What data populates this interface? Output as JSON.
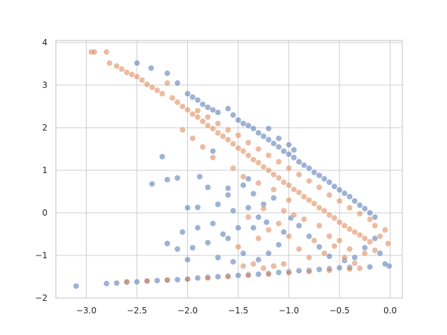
{
  "chart_data": {
    "type": "scatter",
    "title": "",
    "xlabel": "",
    "ylabel": "",
    "xlim": [
      -3.3,
      0.12
    ],
    "ylim": [
      -2.0,
      4.05
    ],
    "xticks": [
      -3.0,
      -2.5,
      -2.0,
      -1.5,
      -1.0,
      -0.5,
      0.0
    ],
    "xtick_labels": [
      "−3.0",
      "−2.5",
      "−2.0",
      "−1.5",
      "−1.0",
      "−0.5",
      "0.0"
    ],
    "yticks": [
      -2,
      -1,
      0,
      1,
      2,
      3,
      4
    ],
    "ytick_labels": [
      "−2",
      "−1",
      "0",
      "1",
      "2",
      "3",
      "4"
    ],
    "grid": true,
    "legend": "none",
    "series": [
      {
        "color": "#4c72b0",
        "point_alpha": 0.55,
        "points": [
          [
            -3.1,
            -1.72
          ],
          [
            -2.8,
            -1.66
          ],
          [
            -2.7,
            -1.65
          ],
          [
            -2.6,
            -1.63
          ],
          [
            -2.5,
            -1.62
          ],
          [
            -2.4,
            -1.6
          ],
          [
            -2.3,
            -1.59
          ],
          [
            -2.2,
            -1.58
          ],
          [
            -2.1,
            -1.57
          ],
          [
            -2.0,
            -1.55
          ],
          [
            -1.9,
            -1.53
          ],
          [
            -1.8,
            -1.51
          ],
          [
            -1.7,
            -1.5
          ],
          [
            -1.6,
            -1.48
          ],
          [
            -1.5,
            -1.47
          ],
          [
            -1.4,
            -1.45
          ],
          [
            -1.3,
            -1.44
          ],
          [
            -1.2,
            -1.42
          ],
          [
            -1.1,
            -1.4
          ],
          [
            -1.0,
            -1.38
          ],
          [
            -0.9,
            -1.36
          ],
          [
            -0.8,
            -1.35
          ],
          [
            -0.7,
            -1.33
          ],
          [
            -0.6,
            -1.31
          ],
          [
            -0.5,
            -1.29
          ],
          [
            -0.4,
            -1.28
          ],
          [
            -0.2,
            -1.27
          ],
          [
            -0.01,
            -1.25
          ],
          [
            -2.5,
            3.52
          ],
          [
            -2.36,
            3.4
          ],
          [
            -2.2,
            3.28
          ],
          [
            -2.1,
            3.05
          ],
          [
            -2.0,
            2.8
          ],
          [
            -1.95,
            2.72
          ],
          [
            -1.9,
            2.65
          ],
          [
            -1.85,
            2.55
          ],
          [
            -1.8,
            2.48
          ],
          [
            -1.75,
            2.42
          ],
          [
            -1.7,
            2.36
          ],
          [
            -1.6,
            2.45
          ],
          [
            -1.55,
            2.3
          ],
          [
            -1.5,
            2.18
          ],
          [
            -1.45,
            2.1
          ],
          [
            -1.4,
            2.05
          ],
          [
            -1.35,
            1.98
          ],
          [
            -1.3,
            1.88
          ],
          [
            -1.25,
            1.8
          ],
          [
            -1.2,
            1.72
          ],
          [
            -1.15,
            1.63
          ],
          [
            -1.1,
            1.55
          ],
          [
            -1.05,
            1.45
          ],
          [
            -1.0,
            1.38
          ],
          [
            -0.95,
            1.3
          ],
          [
            -0.9,
            1.2
          ],
          [
            -0.85,
            1.12
          ],
          [
            -0.8,
            1.05
          ],
          [
            -0.75,
            0.95
          ],
          [
            -0.7,
            0.88
          ],
          [
            -0.65,
            0.8
          ],
          [
            -0.6,
            0.72
          ],
          [
            -0.55,
            0.62
          ],
          [
            -0.5,
            0.54
          ],
          [
            -0.45,
            0.46
          ],
          [
            -0.4,
            0.38
          ],
          [
            -0.35,
            0.28
          ],
          [
            -0.3,
            0.18
          ],
          [
            -0.25,
            0.1
          ],
          [
            -0.2,
            0.0
          ],
          [
            -0.15,
            -0.1
          ],
          [
            -1.2,
            1.98
          ],
          [
            -1.1,
            1.75
          ],
          [
            -1.0,
            1.6
          ],
          [
            -0.95,
            1.48
          ],
          [
            -2.35,
            0.68
          ],
          [
            -2.2,
            0.78
          ],
          [
            -2.1,
            0.82
          ],
          [
            -2.0,
            0.12
          ],
          [
            -1.9,
            0.13
          ],
          [
            -2.25,
            1.32
          ],
          [
            -1.88,
            0.85
          ],
          [
            -1.75,
            1.45
          ],
          [
            -1.6,
            0.58
          ],
          [
            -1.8,
            0.6
          ],
          [
            -1.7,
            0.2
          ],
          [
            -1.55,
            0.05
          ],
          [
            -1.4,
            0.12
          ],
          [
            -1.35,
            0.45
          ],
          [
            -1.3,
            -0.1
          ],
          [
            -1.5,
            -0.35
          ],
          [
            -1.65,
            -0.5
          ],
          [
            -1.75,
            -0.25
          ],
          [
            -1.9,
            -0.35
          ],
          [
            -2.05,
            -0.45
          ],
          [
            -2.2,
            -0.72
          ],
          [
            -2.1,
            -0.85
          ],
          [
            -1.95,
            -0.82
          ],
          [
            -1.8,
            -0.7
          ],
          [
            -1.6,
            -0.6
          ],
          [
            -1.45,
            -0.95
          ],
          [
            -1.55,
            -1.15
          ],
          [
            -1.7,
            -1.05
          ],
          [
            -2.0,
            -1.1
          ],
          [
            -1.3,
            -1.1
          ],
          [
            -1.2,
            -0.95
          ],
          [
            -1.1,
            -0.75
          ],
          [
            -1.05,
            -0.45
          ],
          [
            -0.98,
            -0.12
          ],
          [
            -0.9,
            -0.3
          ],
          [
            -0.8,
            -0.55
          ],
          [
            -0.7,
            -0.8
          ],
          [
            -0.6,
            -1.02
          ],
          [
            -0.45,
            -1.12
          ],
          [
            -0.35,
            -1.05
          ],
          [
            -0.25,
            -0.82
          ],
          [
            -0.15,
            -0.6
          ],
          [
            -0.1,
            -0.95
          ],
          [
            -0.05,
            -1.2
          ],
          [
            -1.25,
            0.2
          ],
          [
            -1.15,
            0.35
          ],
          [
            -1.4,
            0.8
          ],
          [
            -1.45,
            0.65
          ],
          [
            -1.6,
            0.42
          ],
          [
            -1.35,
            -0.35
          ],
          [
            -1.22,
            -0.22
          ]
        ]
      },
      {
        "color": "#dd8452",
        "point_alpha": 0.55,
        "points": [
          [
            -2.95,
            3.78
          ],
          [
            -2.92,
            3.78
          ],
          [
            -2.8,
            3.78
          ],
          [
            -2.77,
            3.52
          ],
          [
            -2.7,
            3.45
          ],
          [
            -2.65,
            3.38
          ],
          [
            -2.6,
            3.3
          ],
          [
            -2.55,
            3.25
          ],
          [
            -2.5,
            3.2
          ],
          [
            -2.45,
            3.12
          ],
          [
            -2.4,
            3.02
          ],
          [
            -2.35,
            2.95
          ],
          [
            -2.3,
            2.88
          ],
          [
            -2.2,
            3.05
          ],
          [
            -2.25,
            2.8
          ],
          [
            -2.15,
            2.7
          ],
          [
            -2.1,
            2.6
          ],
          [
            -2.05,
            2.5
          ],
          [
            -2.0,
            2.42
          ],
          [
            -1.95,
            2.32
          ],
          [
            -1.9,
            2.25
          ],
          [
            -1.85,
            2.15
          ],
          [
            -1.8,
            2.05
          ],
          [
            -1.75,
            1.98
          ],
          [
            -1.7,
            1.88
          ],
          [
            -1.65,
            1.8
          ],
          [
            -1.6,
            1.72
          ],
          [
            -1.55,
            1.62
          ],
          [
            -1.5,
            1.52
          ],
          [
            -1.45,
            1.45
          ],
          [
            -1.4,
            1.35
          ],
          [
            -1.35,
            1.25
          ],
          [
            -1.3,
            1.18
          ],
          [
            -1.25,
            1.08
          ],
          [
            -1.2,
            1.0
          ],
          [
            -1.15,
            0.9
          ],
          [
            -1.1,
            0.82
          ],
          [
            -1.05,
            0.72
          ],
          [
            -1.0,
            0.65
          ],
          [
            -0.95,
            0.55
          ],
          [
            -0.9,
            0.48
          ],
          [
            -0.85,
            0.38
          ],
          [
            -0.8,
            0.3
          ],
          [
            -0.75,
            0.22
          ],
          [
            -0.7,
            0.12
          ],
          [
            -0.65,
            0.05
          ],
          [
            -0.6,
            -0.05
          ],
          [
            -0.55,
            -0.12
          ],
          [
            -0.5,
            -0.22
          ],
          [
            -0.45,
            -0.3
          ],
          [
            -0.4,
            -0.38
          ],
          [
            -0.35,
            -0.45
          ],
          [
            -0.3,
            -0.52
          ],
          [
            -0.25,
            -0.6
          ],
          [
            -0.2,
            -0.68
          ],
          [
            -0.1,
            -0.55
          ],
          [
            -0.05,
            -0.4
          ],
          [
            -0.02,
            -0.72
          ],
          [
            -1.9,
            2.4
          ],
          [
            -1.8,
            2.25
          ],
          [
            -1.7,
            2.1
          ],
          [
            -1.6,
            1.95
          ],
          [
            -1.5,
            1.82
          ],
          [
            -1.4,
            1.65
          ],
          [
            -1.3,
            1.5
          ],
          [
            -1.2,
            1.35
          ],
          [
            -1.1,
            1.2
          ],
          [
            -1.0,
            1.05
          ],
          [
            -0.9,
            0.9
          ],
          [
            -0.8,
            0.75
          ],
          [
            -0.7,
            0.6
          ],
          [
            -0.6,
            0.42
          ],
          [
            -0.5,
            0.28
          ],
          [
            -0.4,
            0.12
          ],
          [
            -0.3,
            -0.02
          ],
          [
            -0.2,
            -0.15
          ],
          [
            -0.15,
            -0.3
          ],
          [
            -2.6,
            -1.62
          ],
          [
            -2.4,
            -1.6
          ],
          [
            -2.2,
            -1.58
          ],
          [
            -2.0,
            -1.56
          ],
          [
            -1.8,
            -1.53
          ],
          [
            -1.6,
            -1.5
          ],
          [
            -1.4,
            -1.47
          ],
          [
            -1.2,
            -1.44
          ],
          [
            -1.0,
            -1.41
          ],
          [
            -0.8,
            -1.38
          ],
          [
            -0.6,
            -1.35
          ],
          [
            -0.4,
            -1.32
          ],
          [
            -0.3,
            -1.3
          ],
          [
            -1.3,
            -0.6
          ],
          [
            -1.2,
            -0.4
          ],
          [
            -1.1,
            -0.25
          ],
          [
            -1.0,
            -0.55
          ],
          [
            -0.9,
            -0.85
          ],
          [
            -0.8,
            -1.05
          ],
          [
            -0.75,
            -0.65
          ],
          [
            -0.65,
            -0.95
          ],
          [
            -0.55,
            -0.78
          ],
          [
            -0.45,
            -1.05
          ],
          [
            -0.35,
            -1.18
          ],
          [
            -1.45,
            -1.25
          ],
          [
            -1.5,
            -0.8
          ],
          [
            -1.35,
            -1.2
          ],
          [
            -1.25,
            -1.3
          ],
          [
            -1.15,
            -1.25
          ],
          [
            -1.05,
            -1.2
          ],
          [
            -1.4,
            -0.1
          ],
          [
            -1.25,
            0.1
          ],
          [
            -1.0,
            0.3
          ],
          [
            -0.85,
            -0.15
          ],
          [
            -0.95,
            -0.05
          ],
          [
            -1.05,
            0.05
          ],
          [
            -1.15,
            0.55
          ],
          [
            -1.3,
            0.7
          ],
          [
            -1.45,
            0.85
          ],
          [
            -1.55,
            1.05
          ],
          [
            -1.75,
            1.3
          ],
          [
            -1.85,
            1.55
          ],
          [
            -1.95,
            1.75
          ],
          [
            -2.05,
            1.95
          ],
          [
            -0.7,
            -0.3
          ],
          [
            -0.6,
            -0.55
          ],
          [
            -0.5,
            -0.65
          ],
          [
            -0.4,
            -0.85
          ],
          [
            -0.25,
            -0.95
          ],
          [
            -0.15,
            -0.88
          ]
        ]
      }
    ]
  }
}
